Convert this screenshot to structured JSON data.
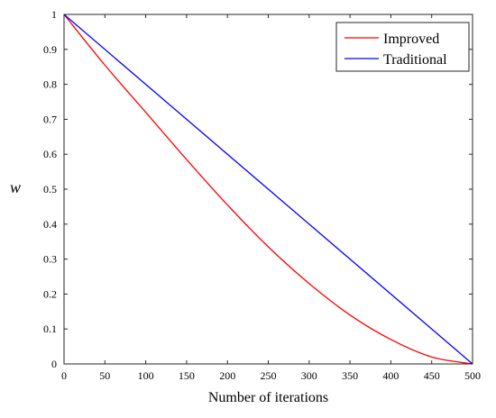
{
  "chart_data": {
    "type": "line",
    "title": "",
    "xlabel": "Number of iterations",
    "ylabel": "w",
    "xlim": [
      0,
      500
    ],
    "ylim": [
      0,
      1
    ],
    "xticks": [
      0,
      50,
      100,
      150,
      200,
      250,
      300,
      350,
      400,
      450,
      500
    ],
    "yticks": [
      0,
      0.1,
      0.2,
      0.3,
      0.4,
      0.5,
      0.6,
      0.7,
      0.8,
      0.9,
      1
    ],
    "grid": false,
    "legend_position": "top-right",
    "series": [
      {
        "name": "Improved",
        "color": "#ff0000",
        "x": [
          0,
          50,
          100,
          150,
          200,
          250,
          300,
          350,
          400,
          450,
          500
        ],
        "y": [
          1.0,
          0.855,
          0.72,
          0.585,
          0.455,
          0.335,
          0.23,
          0.14,
          0.07,
          0.02,
          0.0
        ]
      },
      {
        "name": "Traditional",
        "color": "#0000ff",
        "x": [
          0,
          500
        ],
        "y": [
          1.0,
          0.0
        ]
      }
    ]
  }
}
